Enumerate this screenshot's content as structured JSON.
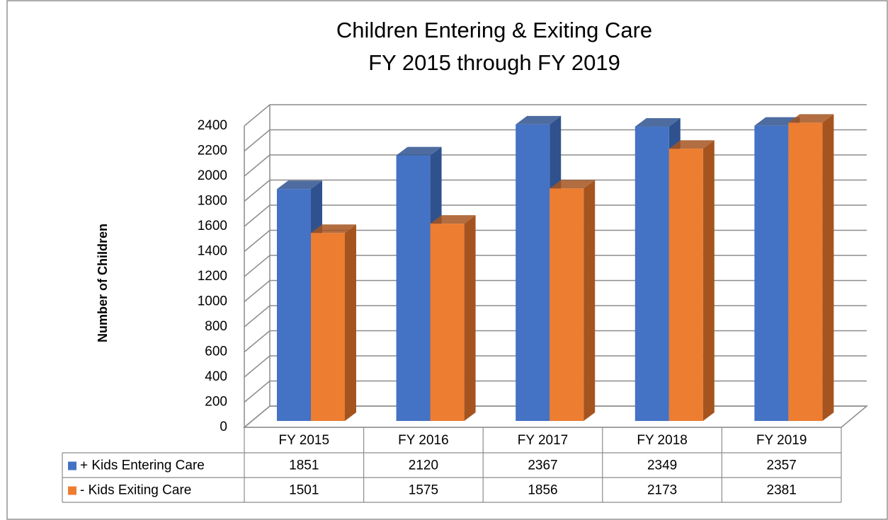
{
  "chart_data": {
    "type": "bar3d",
    "title": "Children Entering & Exiting Care",
    "subtitle": "FY 2015 through FY 2019",
    "y_label": "Number of Children",
    "categories": [
      "FY 2015",
      "FY 2016",
      "FY 2017",
      "FY 2018",
      "FY 2019"
    ],
    "series": [
      {
        "name": "+ Kids Entering Care",
        "color": "#4472c4",
        "side_color": "#2f528f",
        "values": [
          1851,
          2120,
          2367,
          2349,
          2357
        ]
      },
      {
        "name": "- Kids Exiting Care",
        "color": "#ed7d31",
        "side_color": "#a5541f",
        "values": [
          1501,
          1575,
          1856,
          2173,
          2381
        ]
      }
    ],
    "ylim": [
      0,
      2400
    ],
    "yticks": [
      0,
      200,
      400,
      600,
      800,
      1000,
      1200,
      1400,
      1600,
      1800,
      2000,
      2200,
      2400
    ],
    "grid": true,
    "data_table": true
  }
}
